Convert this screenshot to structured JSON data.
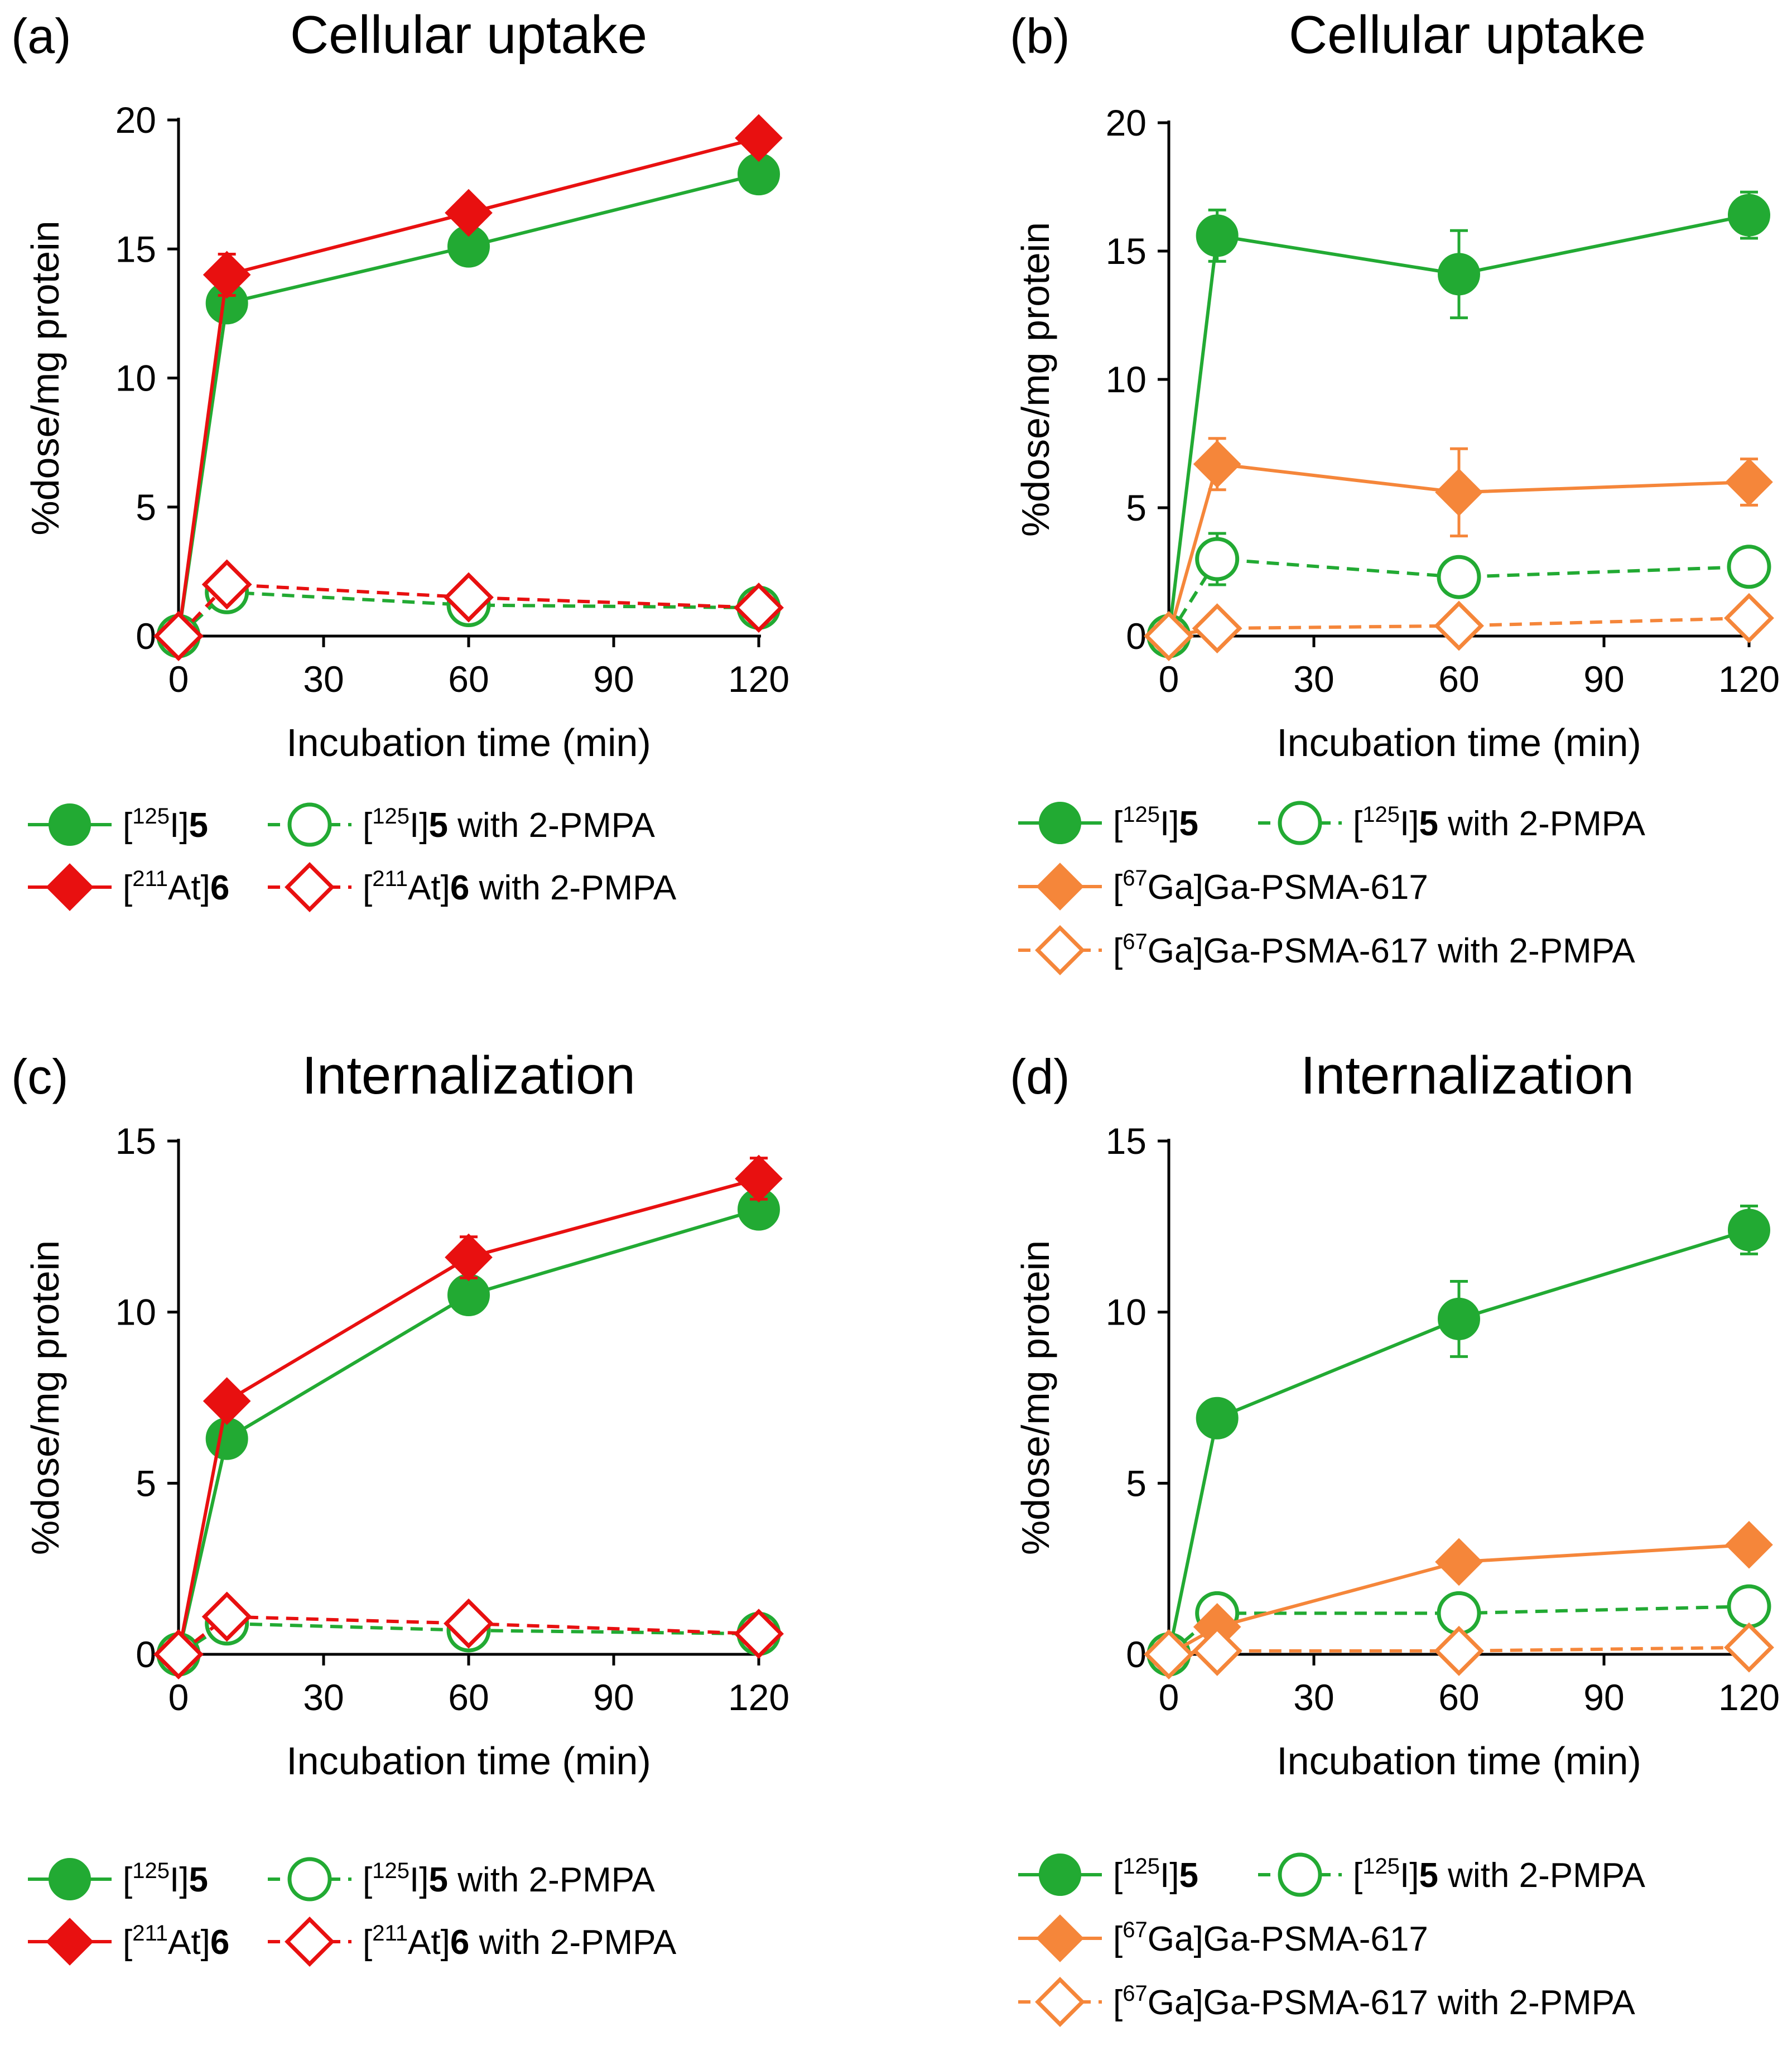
{
  "colors": {
    "green": "#22aa33",
    "red": "#e81010",
    "orange": "#f5863a",
    "axis": "#000000"
  },
  "chart_data": [
    {
      "panel_label": "(a)",
      "title": "Cellular uptake",
      "type": "line",
      "xlabel": "Incubation time (min)",
      "ylabel": "%dose/mg protein",
      "xlim": [
        0,
        120
      ],
      "ylim": [
        0,
        20
      ],
      "xticks": [
        "0",
        "30",
        "60",
        "90",
        "120"
      ],
      "yticks": [
        "0",
        "5",
        "10",
        "15",
        "20"
      ],
      "x": [
        0,
        10,
        60,
        120
      ],
      "series": [
        {
          "name": "[125I]5",
          "color": "green",
          "marker": "circle",
          "filled": true,
          "dashed": false,
          "values": [
            0,
            12.9,
            15.1,
            17.9
          ],
          "errors": [
            0,
            0.3,
            0.3,
            0.3
          ]
        },
        {
          "name": "[125I]5 with 2-PMPA",
          "color": "green",
          "marker": "circle",
          "filled": false,
          "dashed": true,
          "values": [
            0,
            1.7,
            1.2,
            1.1
          ],
          "errors": [
            0,
            0.1,
            0.1,
            0.1
          ]
        },
        {
          "name": "[211At]6",
          "color": "red",
          "marker": "diamond",
          "filled": true,
          "dashed": false,
          "values": [
            0,
            14.0,
            16.4,
            19.3
          ],
          "errors": [
            0,
            0.8,
            0.4,
            0.2
          ]
        },
        {
          "name": "[211At]6 with 2-PMPA",
          "color": "red",
          "marker": "diamond",
          "filled": false,
          "dashed": true,
          "values": [
            0,
            2.0,
            1.5,
            1.1
          ],
          "errors": [
            0,
            0.1,
            0.1,
            0.1
          ]
        }
      ],
      "legend": [
        [
          {
            "series": 0,
            "pre": "[",
            "sup": "125",
            "mid": "I]",
            "bold": "5",
            "post": ""
          },
          {
            "series": 1,
            "pre": "[",
            "sup": "125",
            "mid": "I]",
            "bold": "5",
            "post": " with 2-PMPA"
          }
        ],
        [
          {
            "series": 2,
            "pre": "[",
            "sup": "211",
            "mid": "At]",
            "bold": "6",
            "post": ""
          },
          {
            "series": 3,
            "pre": "[",
            "sup": "211",
            "mid": "At]",
            "bold": "6",
            "post": " with 2-PMPA"
          }
        ]
      ]
    },
    {
      "panel_label": "(b)",
      "title": "Cellular uptake",
      "type": "line",
      "xlabel": "Incubation time (min)",
      "ylabel": "%dose/mg protein",
      "xlim": [
        0,
        120
      ],
      "ylim": [
        0,
        20
      ],
      "xticks": [
        "0",
        "30",
        "60",
        "90",
        "120"
      ],
      "yticks": [
        "0",
        "5",
        "10",
        "15",
        "20"
      ],
      "x": [
        0,
        10,
        60,
        120
      ],
      "series": [
        {
          "name": "[125I]5",
          "color": "green",
          "marker": "circle",
          "filled": true,
          "dashed": false,
          "values": [
            0,
            15.6,
            14.1,
            16.4
          ],
          "errors": [
            0,
            1.0,
            1.7,
            0.9
          ]
        },
        {
          "name": "[125I]5 with 2-PMPA",
          "color": "green",
          "marker": "circle",
          "filled": false,
          "dashed": true,
          "values": [
            0,
            3.0,
            2.3,
            2.7
          ],
          "errors": [
            0,
            1.0,
            0.2,
            0.2
          ]
        },
        {
          "name": "[67Ga]Ga-PSMA-617",
          "color": "orange",
          "marker": "diamond",
          "filled": true,
          "dashed": false,
          "values": [
            0,
            6.7,
            5.6,
            6.0
          ],
          "errors": [
            0,
            1.0,
            1.7,
            0.9
          ]
        },
        {
          "name": "[67Ga]Ga-PSMA-617 with 2-PMPA",
          "color": "orange",
          "marker": "diamond",
          "filled": false,
          "dashed": true,
          "values": [
            0,
            0.3,
            0.4,
            0.7
          ],
          "errors": [
            0,
            0.05,
            0.05,
            0.05
          ]
        }
      ],
      "legend": [
        [
          {
            "series": 0,
            "pre": "[",
            "sup": "125",
            "mid": "I]",
            "bold": "5",
            "post": ""
          },
          {
            "series": 1,
            "pre": "[",
            "sup": "125",
            "mid": "I]",
            "bold": "5",
            "post": " with 2-PMPA"
          }
        ],
        [
          {
            "series": 2,
            "pre": "[",
            "sup": "67",
            "mid": "Ga]Ga-PSMA-617",
            "bold": "",
            "post": ""
          }
        ],
        [
          {
            "series": 3,
            "pre": "[",
            "sup": "67",
            "mid": "Ga]Ga-PSMA-617 with 2-PMPA",
            "bold": "",
            "post": ""
          }
        ]
      ]
    },
    {
      "panel_label": "(c)",
      "title": "Internalization",
      "type": "line",
      "xlabel": "Incubation time (min)",
      "ylabel": "%dose/mg protein",
      "xlim": [
        0,
        120
      ],
      "ylim": [
        0,
        15
      ],
      "xticks": [
        "0",
        "30",
        "60",
        "90",
        "120"
      ],
      "yticks": [
        "0",
        "5",
        "10",
        "15"
      ],
      "x": [
        0,
        10,
        60,
        120
      ],
      "series": [
        {
          "name": "[125I]5",
          "color": "green",
          "marker": "circle",
          "filled": true,
          "dashed": false,
          "values": [
            0,
            6.3,
            10.5,
            13.0
          ],
          "errors": [
            0,
            0.2,
            0.2,
            0.3
          ]
        },
        {
          "name": "[125I]5 with 2-PMPA",
          "color": "green",
          "marker": "circle",
          "filled": false,
          "dashed": true,
          "values": [
            0,
            0.9,
            0.7,
            0.6
          ],
          "errors": [
            0,
            0.05,
            0.05,
            0.05
          ]
        },
        {
          "name": "[211At]6",
          "color": "red",
          "marker": "diamond",
          "filled": true,
          "dashed": false,
          "values": [
            0,
            7.4,
            11.6,
            13.9
          ],
          "errors": [
            0,
            0.2,
            0.6,
            0.6
          ]
        },
        {
          "name": "[211At]6 with 2-PMPA",
          "color": "red",
          "marker": "diamond",
          "filled": false,
          "dashed": true,
          "values": [
            0,
            1.1,
            0.9,
            0.6
          ],
          "errors": [
            0,
            0.05,
            0.05,
            0.05
          ]
        }
      ],
      "legend": [
        [
          {
            "series": 0,
            "pre": "[",
            "sup": "125",
            "mid": "I]",
            "bold": "5",
            "post": ""
          },
          {
            "series": 1,
            "pre": "[",
            "sup": "125",
            "mid": "I]",
            "bold": "5",
            "post": " with 2-PMPA"
          }
        ],
        [
          {
            "series": 2,
            "pre": "[",
            "sup": "211",
            "mid": "At]",
            "bold": "6",
            "post": ""
          },
          {
            "series": 3,
            "pre": "[",
            "sup": "211",
            "mid": "At]",
            "bold": "6",
            "post": " with 2-PMPA"
          }
        ]
      ]
    },
    {
      "panel_label": "(d)",
      "title": "Internalization",
      "type": "line",
      "xlabel": "Incubation time (min)",
      "ylabel": "%dose/mg protein",
      "xlim": [
        0,
        120
      ],
      "ylim": [
        0,
        15
      ],
      "xticks": [
        "0",
        "30",
        "60",
        "90",
        "120"
      ],
      "yticks": [
        "0",
        "5",
        "10",
        "15"
      ],
      "x": [
        0,
        10,
        60,
        120
      ],
      "series": [
        {
          "name": "[125I]5",
          "color": "green",
          "marker": "circle",
          "filled": true,
          "dashed": false,
          "values": [
            0,
            6.9,
            9.8,
            12.4
          ],
          "errors": [
            0,
            0.3,
            1.1,
            0.7
          ]
        },
        {
          "name": "[125I]5 with 2-PMPA",
          "color": "green",
          "marker": "circle",
          "filled": false,
          "dashed": true,
          "values": [
            0,
            1.2,
            1.2,
            1.4
          ],
          "errors": [
            0,
            0.05,
            0.05,
            0.05
          ]
        },
        {
          "name": "[67Ga]Ga-PSMA-617",
          "color": "orange",
          "marker": "diamond",
          "filled": true,
          "dashed": false,
          "values": [
            0,
            0.8,
            2.7,
            3.2
          ],
          "errors": [
            0,
            0.1,
            0.3,
            0.1
          ]
        },
        {
          "name": "[67Ga]Ga-PSMA-617 with 2-PMPA",
          "color": "orange",
          "marker": "diamond",
          "filled": false,
          "dashed": true,
          "values": [
            0,
            0.1,
            0.1,
            0.2
          ],
          "errors": [
            0,
            0.02,
            0.02,
            0.02
          ]
        }
      ],
      "legend": [
        [
          {
            "series": 0,
            "pre": "[",
            "sup": "125",
            "mid": "I]",
            "bold": "5",
            "post": ""
          },
          {
            "series": 1,
            "pre": "[",
            "sup": "125",
            "mid": "I]",
            "bold": "5",
            "post": " with 2-PMPA"
          }
        ],
        [
          {
            "series": 2,
            "pre": "[",
            "sup": "67",
            "mid": "Ga]Ga-PSMA-617",
            "bold": "",
            "post": ""
          }
        ],
        [
          {
            "series": 3,
            "pre": "[",
            "sup": "67",
            "mid": "Ga]Ga-PSMA-617 with 2-PMPA",
            "bold": "",
            "post": ""
          }
        ]
      ]
    }
  ]
}
